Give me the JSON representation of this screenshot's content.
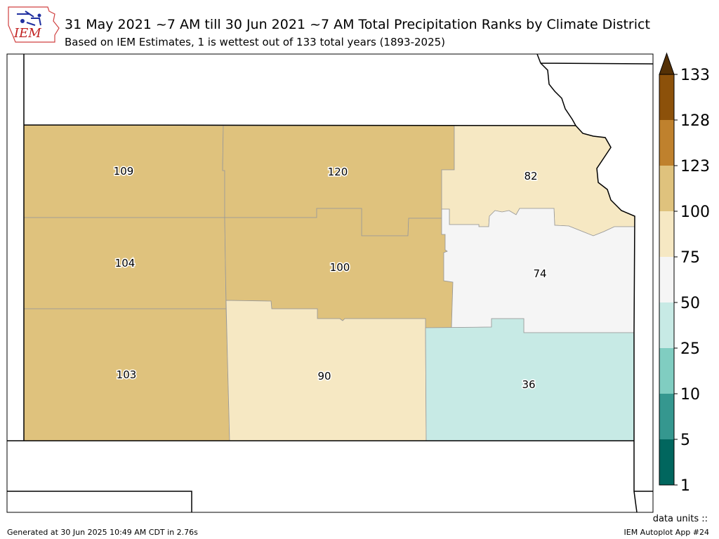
{
  "title": "31 May 2021 ~7 AM till 30 Jun 2021 ~7 AM Total Precipitation Ranks by Climate District",
  "subtitle": "Based on IEM Estimates, 1 is wettest out of 133 total years (1893-2025)",
  "logo_text": "IEM",
  "footer": {
    "generated": "Generated at 30 Jun 2025 10:49 AM CDT in 2.76s",
    "units": "data units ::",
    "app": "IEM Autoplot App #24"
  },
  "districts": [
    {
      "id": "nw",
      "rank": "109",
      "color": "#dfc27d"
    },
    {
      "id": "nc",
      "rank": "120",
      "color": "#dfc27d"
    },
    {
      "id": "ne",
      "rank": "82",
      "color": "#f6e8c3"
    },
    {
      "id": "wc",
      "rank": "104",
      "color": "#dfc27d"
    },
    {
      "id": "c",
      "rank": "100",
      "color": "#dfc27d"
    },
    {
      "id": "ec",
      "rank": "74",
      "color": "#f5f5f5"
    },
    {
      "id": "sw",
      "rank": "103",
      "color": "#dfc27d"
    },
    {
      "id": "sc",
      "rank": "90",
      "color": "#f6e8c3"
    },
    {
      "id": "se",
      "rank": "36",
      "color": "#c7eae5"
    }
  ],
  "colorbar": {
    "ticks": [
      "1",
      "5",
      "10",
      "25",
      "50",
      "75",
      "100",
      "123",
      "128",
      "133"
    ],
    "colors": [
      "#01665e",
      "#35978f",
      "#80cdc1",
      "#c7eae5",
      "#f5f5f5",
      "#f6e8c3",
      "#dfc27d",
      "#bf812d",
      "#8c510a"
    ],
    "extend_color": "#543005"
  }
}
